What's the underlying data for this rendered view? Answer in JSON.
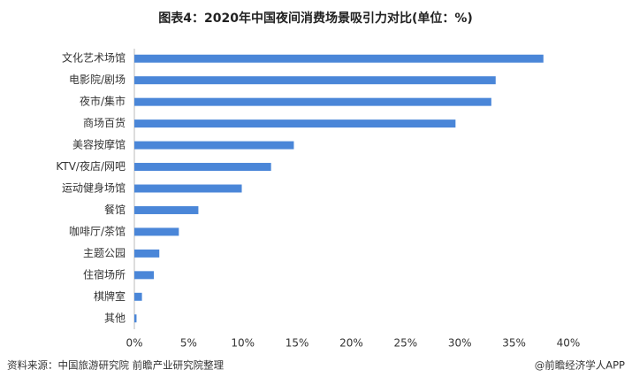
{
  "chart_data": {
    "type": "bar",
    "orientation": "horizontal",
    "title": "图表4：2020年中国夜间消费场景吸引力对比(单位：%)",
    "categories": [
      "文化艺术场馆",
      "电影院/剧场",
      "夜市/集市",
      "商场百货",
      "美容按摩馆",
      "KTV/夜店/网吧",
      "运动健身场馆",
      "餐馆",
      "咖啡厅/茶馆",
      "主题公园",
      "住宿场所",
      "棋牌室",
      "其他"
    ],
    "values": [
      37.7,
      33.3,
      32.9,
      29.6,
      14.7,
      12.6,
      9.9,
      5.9,
      4.1,
      2.3,
      1.8,
      0.7,
      0.2
    ],
    "color": "#4a86d8",
    "xlim": [
      0,
      40
    ],
    "xticks": [
      {
        "value": 0,
        "label": "0%"
      },
      {
        "value": 5,
        "label": "5%"
      },
      {
        "value": 10,
        "label": "10%"
      },
      {
        "value": 15,
        "label": "15%"
      },
      {
        "value": 20,
        "label": "20%"
      },
      {
        "value": 25,
        "label": "25%"
      },
      {
        "value": 30,
        "label": "30%"
      },
      {
        "value": 35,
        "label": "35%"
      },
      {
        "value": 40,
        "label": "40%"
      }
    ],
    "grid": false,
    "source": "资料来源：中国旅游研究院 前瞻产业研究院整理",
    "credit": "@前瞻经济学人APP"
  }
}
